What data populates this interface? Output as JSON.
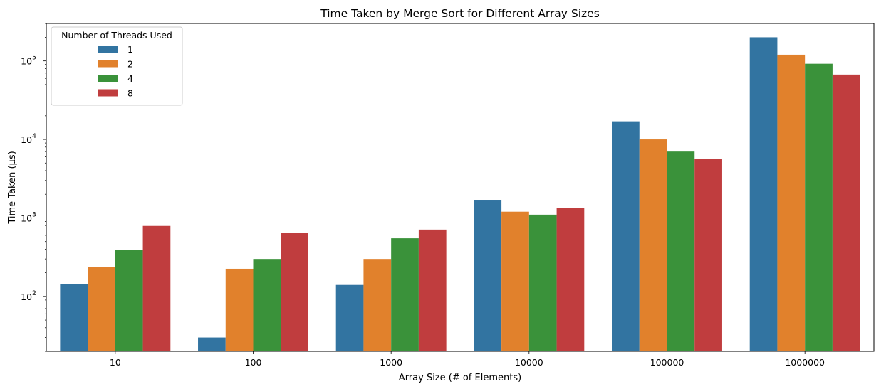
{
  "chart_data": {
    "type": "bar",
    "title": "Time Taken by Merge Sort for Different Array Sizes",
    "xlabel": "Array Size (# of Elements)",
    "ylabel": "Time Taken (μs)",
    "y_scale": "log",
    "ylim": [
      20,
      300000
    ],
    "yticks": [
      {
        "value": 100,
        "base": "10",
        "exp": "2"
      },
      {
        "value": 1000,
        "base": "10",
        "exp": "3"
      },
      {
        "value": 10000,
        "base": "10",
        "exp": "4"
      },
      {
        "value": 100000,
        "base": "10",
        "exp": "5"
      }
    ],
    "categories": [
      "10",
      "100",
      "1000",
      "10000",
      "100000",
      "1000000"
    ],
    "legend": {
      "title": "Number of Threads Used",
      "position": "upper-left"
    },
    "series": [
      {
        "name": "1",
        "color": "#3274a1",
        "values": [
          145,
          30,
          140,
          1700,
          17000,
          200000
        ]
      },
      {
        "name": "2",
        "color": "#e1812c",
        "values": [
          235,
          225,
          300,
          1200,
          10000,
          120000
        ]
      },
      {
        "name": "4",
        "color": "#3a923a",
        "values": [
          390,
          300,
          550,
          1100,
          7000,
          92000
        ]
      },
      {
        "name": "8",
        "color": "#c03d3e",
        "values": [
          790,
          640,
          710,
          1330,
          5700,
          67000
        ]
      }
    ],
    "grid": false
  }
}
